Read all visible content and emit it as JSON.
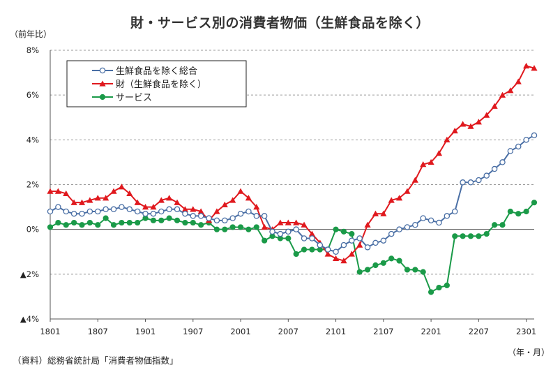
{
  "title": "財・サービス別の消費者物価（生鮮食品を除く）",
  "y_unit": "（前年比）",
  "x_unit": "（年・月）",
  "source": "（資料）総務省統計局「消費者物価指数」",
  "chart_data": {
    "type": "line",
    "x_tick_labels": [
      "1801",
      "1807",
      "1901",
      "1907",
      "2001",
      "2007",
      "2101",
      "2107",
      "2201",
      "2207",
      "2301"
    ],
    "y_tick_labels": [
      "▲4%",
      "▲2%",
      "0%",
      "2%",
      "4%",
      "6%",
      "8%"
    ],
    "ylim": [
      -4,
      8
    ],
    "y_ticks": [
      -4,
      -2,
      0,
      2,
      4,
      6,
      8
    ],
    "grid": "horizontal dashed",
    "legend_position": "top-left",
    "series": [
      {
        "name": "生鮮食品を除く総合",
        "color": "#4a6fa5",
        "marker": "open-circle",
        "values": [
          0.8,
          1.0,
          0.8,
          0.7,
          0.7,
          0.8,
          0.8,
          0.9,
          0.9,
          1.0,
          0.9,
          0.8,
          0.7,
          0.7,
          0.8,
          0.9,
          0.9,
          0.7,
          0.6,
          0.6,
          0.5,
          0.4,
          0.4,
          0.5,
          0.7,
          0.8,
          0.6,
          0.6,
          -0.1,
          -0.2,
          -0.1,
          0.0,
          -0.4,
          -0.4,
          -0.7,
          -0.9,
          -1.0,
          -0.7,
          -0.5,
          -0.4,
          -0.8,
          -0.6,
          -0.5,
          -0.2,
          0.0,
          0.1,
          0.2,
          0.5,
          0.4,
          0.3,
          0.6,
          0.8,
          2.1,
          2.1,
          2.2,
          2.4,
          2.7,
          3.0,
          3.5,
          3.7,
          4.0,
          4.2
        ]
      },
      {
        "name": "財（生鮮食品を除く）",
        "color": "#e0191e",
        "marker": "triangle",
        "values": [
          1.7,
          1.7,
          1.6,
          1.2,
          1.2,
          1.3,
          1.4,
          1.4,
          1.7,
          1.9,
          1.6,
          1.2,
          1.0,
          1.0,
          1.3,
          1.4,
          1.2,
          0.9,
          0.9,
          0.8,
          0.4,
          0.8,
          1.1,
          1.3,
          1.7,
          1.4,
          1.0,
          0.1,
          0.0,
          0.3,
          0.3,
          0.3,
          0.2,
          -0.2,
          -0.6,
          -1.1,
          -1.3,
          -1.4,
          -1.1,
          -0.7,
          0.2,
          0.7,
          0.7,
          1.3,
          1.4,
          1.7,
          2.2,
          2.9,
          3.0,
          3.4,
          4.0,
          4.4,
          4.7,
          4.6,
          4.8,
          5.1,
          5.5,
          6.0,
          6.2,
          6.6,
          7.3,
          7.2
        ]
      },
      {
        "name": "サービス",
        "color": "#1a9a48",
        "marker": "filled-circle",
        "values": [
          0.1,
          0.3,
          0.2,
          0.3,
          0.2,
          0.3,
          0.2,
          0.5,
          0.2,
          0.3,
          0.3,
          0.3,
          0.5,
          0.4,
          0.4,
          0.5,
          0.4,
          0.3,
          0.3,
          0.2,
          0.3,
          0.0,
          0.0,
          0.1,
          0.1,
          0.0,
          0.1,
          -0.5,
          -0.3,
          -0.4,
          -0.4,
          -1.1,
          -0.9,
          -0.9,
          -0.9,
          -0.9,
          0.0,
          -0.1,
          -0.2,
          -1.9,
          -1.8,
          -1.6,
          -1.5,
          -1.3,
          -1.4,
          -1.8,
          -1.8,
          -1.9,
          -2.8,
          -2.6,
          -2.5,
          -0.3,
          -0.3,
          -0.3,
          -0.3,
          -0.2,
          0.2,
          0.2,
          0.8,
          0.7,
          0.8,
          1.2
        ]
      }
    ]
  }
}
